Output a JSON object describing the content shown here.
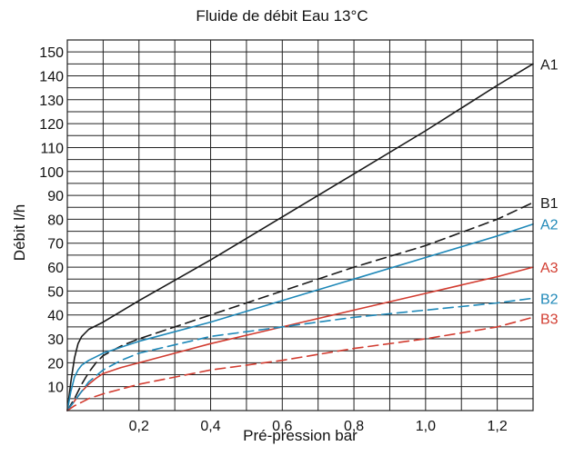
{
  "colors": {
    "black": "#1a1a1a",
    "blue": "#1e88b8",
    "red": "#d23c30",
    "grid": "#222222"
  },
  "chart_data": {
    "type": "line",
    "title": "Fluide de débit Eau 13°C",
    "xlabel": "Pré-pression bar",
    "ylabel": "Débit l/h",
    "xlim": [
      0,
      1.3
    ],
    "ylim": [
      0,
      155
    ],
    "xticks": [
      0.2,
      0.4,
      0.6,
      0.8,
      1.0,
      1.2
    ],
    "xtick_labels": [
      "0,2",
      "0,4",
      "0,6",
      "0,8",
      "1,0",
      "1,2"
    ],
    "yticks": [
      10,
      20,
      30,
      40,
      50,
      60,
      70,
      80,
      90,
      100,
      110,
      120,
      130,
      140,
      150
    ],
    "ytick_labels": [
      "10",
      "20",
      "30",
      "40",
      "50",
      "60",
      "70",
      "80",
      "90",
      "100",
      "110",
      "120",
      "130",
      "140",
      "150"
    ],
    "grid": true,
    "series": [
      {
        "name": "A1",
        "color": "#1a1a1a",
        "dash": "solid",
        "x": [
          0,
          0.01,
          0.02,
          0.03,
          0.04,
          0.06,
          0.08,
          0.1,
          0.2,
          0.4,
          0.6,
          0.8,
          1.0,
          1.2,
          1.3
        ],
        "y": [
          0,
          12,
          22,
          28,
          31,
          34,
          35.5,
          37,
          46,
          63,
          81,
          99,
          117,
          136,
          145
        ]
      },
      {
        "name": "B1",
        "color": "#1a1a1a",
        "dash": "dashed",
        "x": [
          0,
          0.02,
          0.04,
          0.06,
          0.08,
          0.1,
          0.15,
          0.2,
          0.4,
          0.6,
          0.8,
          1.0,
          1.2,
          1.3
        ],
        "y": [
          0,
          5,
          11,
          16,
          20,
          23,
          27,
          30,
          40,
          50,
          60,
          69,
          80,
          87
        ]
      },
      {
        "name": "A2",
        "color": "#1e88b8",
        "dash": "solid",
        "x": [
          0,
          0.01,
          0.02,
          0.03,
          0.04,
          0.06,
          0.08,
          0.1,
          0.15,
          0.2,
          0.4,
          0.6,
          0.8,
          1.0,
          1.2,
          1.3
        ],
        "y": [
          0,
          8,
          14,
          17,
          19,
          21,
          22.5,
          24,
          26.5,
          29,
          37,
          46,
          55,
          64,
          73,
          78
        ]
      },
      {
        "name": "A3",
        "color": "#d23c30",
        "dash": "solid",
        "x": [
          0,
          0.02,
          0.04,
          0.06,
          0.08,
          0.1,
          0.15,
          0.2,
          0.4,
          0.6,
          0.8,
          1.0,
          1.2,
          1.3
        ],
        "y": [
          0,
          4,
          8,
          11,
          13.5,
          15.5,
          18,
          20,
          28,
          35,
          42,
          49,
          56,
          60
        ]
      },
      {
        "name": "B2",
        "color": "#1e88b8",
        "dash": "dashed",
        "x": [
          0,
          0.02,
          0.04,
          0.06,
          0.08,
          0.1,
          0.15,
          0.2,
          0.4,
          0.6,
          0.8,
          1.0,
          1.2,
          1.3
        ],
        "y": [
          0,
          4,
          8,
          12,
          14.5,
          17,
          21,
          24,
          31,
          35,
          39,
          42,
          45,
          47
        ]
      },
      {
        "name": "B3",
        "color": "#d23c30",
        "dash": "dashed",
        "x": [
          0,
          0.02,
          0.04,
          0.06,
          0.08,
          0.1,
          0.15,
          0.2,
          0.4,
          0.6,
          0.8,
          1.0,
          1.2,
          1.3
        ],
        "y": [
          0,
          2,
          3.5,
          5,
          6,
          7,
          9,
          11,
          17,
          21,
          26,
          30,
          35,
          39
        ]
      }
    ]
  }
}
